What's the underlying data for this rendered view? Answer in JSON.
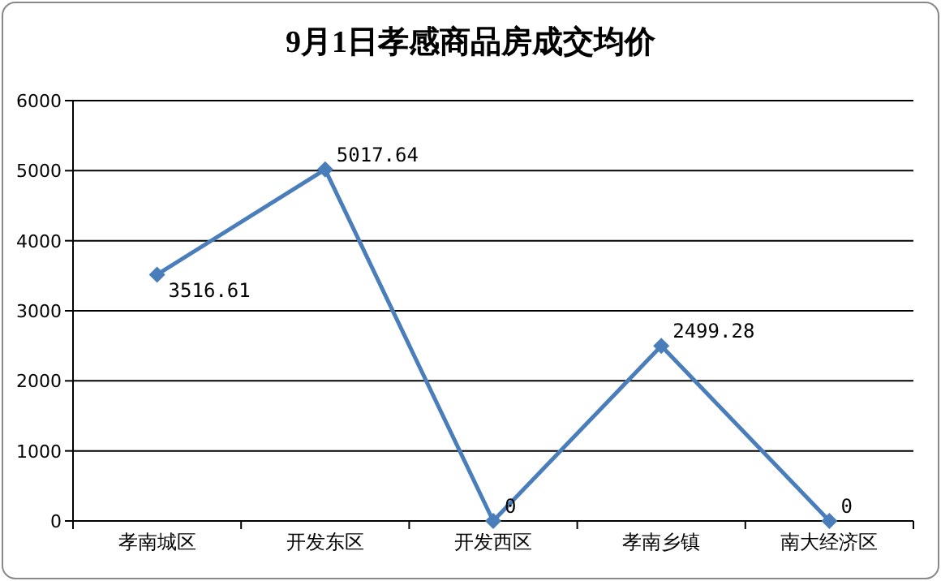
{
  "chart_data": {
    "type": "line",
    "title": "9月1日孝感商品房成交均价",
    "categories": [
      "孝南城区",
      "开发东区",
      "开发西区",
      "孝南乡镇",
      "南大经济区"
    ],
    "series": [
      {
        "color": "#4a7ebb",
        "values": [
          3516.61,
          5017.64,
          0,
          2499.28,
          0
        ]
      }
    ],
    "ylim": [
      0,
      6000
    ],
    "yticks": [
      0,
      1000,
      2000,
      3000,
      4000,
      5000,
      6000
    ],
    "grid": "y",
    "marker": "diamond",
    "line_style": "solid",
    "data_labels": true
  }
}
